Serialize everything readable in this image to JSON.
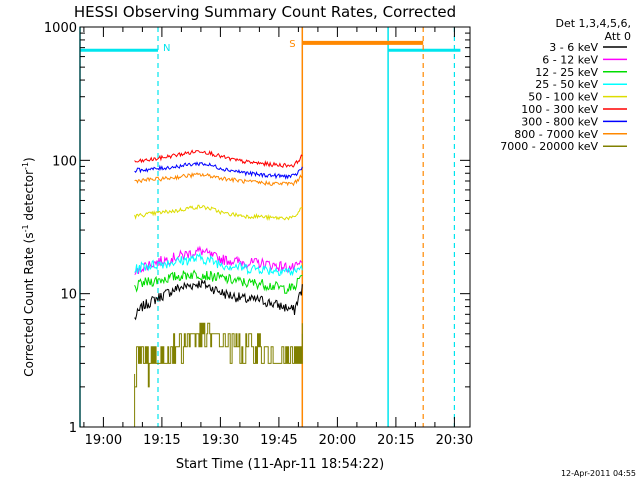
{
  "chart_data": {
    "type": "line",
    "title": "HESSI Observing Summary Count Rates, Corrected",
    "xlabel": "Start Time (11-Apr-11 18:54:22)",
    "ylabel": "Corrected Count Rate (s^-1 detector^-1)",
    "ylabel_parts": {
      "a": "Corrected Count Rate (s",
      "sup1": "-1",
      "b": " detector",
      "sup2": "-1",
      "c": ")"
    },
    "yscale": "log",
    "xlim": [
      "18:54",
      "20:34"
    ],
    "ylim": [
      1,
      1000
    ],
    "x_ticks": [
      "19:00",
      "19:15",
      "19:30",
      "19:45",
      "20:00",
      "20:15",
      "20:30"
    ],
    "y_ticks": [
      "1",
      "10",
      "100",
      "1000"
    ],
    "grid": false,
    "legend_position": "top-right",
    "legend_header": [
      "Det 1,3,4,5,6,",
      "Att 0"
    ],
    "series": [
      {
        "name": "3 - 6 keV",
        "color": "#000000",
        "x": [
          "19:08",
          "19:10",
          "19:13",
          "19:16",
          "19:19",
          "19:22",
          "19:25",
          "19:28",
          "19:31",
          "19:34",
          "19:37",
          "19:40",
          "19:43",
          "19:46",
          "19:49",
          "19:51"
        ],
        "y": [
          6.5,
          8,
          9,
          10,
          11,
          11.5,
          12,
          11,
          10,
          9.5,
          9,
          9,
          8.5,
          8,
          7.5,
          11
        ]
      },
      {
        "name": "6 - 12 keV",
        "color": "#ff00ff",
        "x": [
          "19:08",
          "19:10",
          "19:13",
          "19:16",
          "19:19",
          "19:22",
          "19:25",
          "19:28",
          "19:31",
          "19:34",
          "19:37",
          "19:40",
          "19:43",
          "19:46",
          "19:49",
          "19:51"
        ],
        "y": [
          14,
          16,
          17,
          18,
          19,
          20,
          21,
          19,
          18,
          17.5,
          17,
          17,
          16.5,
          16,
          15.5,
          17
        ]
      },
      {
        "name": "12 - 25 keV",
        "color": "#00dd00",
        "x": [
          "19:08",
          "19:10",
          "19:13",
          "19:16",
          "19:19",
          "19:22",
          "19:25",
          "19:28",
          "19:31",
          "19:34",
          "19:37",
          "19:40",
          "19:43",
          "19:46",
          "19:49",
          "19:51"
        ],
        "y": [
          11,
          12,
          12.5,
          13,
          13.5,
          14,
          14,
          13.5,
          13,
          12.5,
          12,
          12,
          11.5,
          11,
          11,
          14
        ]
      },
      {
        "name": "25 - 50 keV",
        "color": "#00ffff",
        "x": [
          "19:08",
          "19:10",
          "19:13",
          "19:16",
          "19:19",
          "19:22",
          "19:25",
          "19:28",
          "19:31",
          "19:34",
          "19:37",
          "19:40",
          "19:43",
          "19:46",
          "19:49",
          "19:51"
        ],
        "y": [
          15,
          16,
          16.5,
          17,
          17.5,
          18,
          18.5,
          17.5,
          16.5,
          16,
          15.5,
          15.5,
          15,
          15,
          14.5,
          16
        ]
      },
      {
        "name": "50 - 100 keV",
        "color": "#dddd00",
        "x": [
          "19:08",
          "19:10",
          "19:13",
          "19:16",
          "19:19",
          "19:22",
          "19:25",
          "19:28",
          "19:31",
          "19:34",
          "19:37",
          "19:40",
          "19:43",
          "19:46",
          "19:49",
          "19:51"
        ],
        "y": [
          38,
          39,
          40,
          41,
          42,
          44,
          45,
          43,
          40,
          39,
          38,
          38,
          37,
          37,
          37,
          45
        ]
      },
      {
        "name": "100 - 300 keV",
        "color": "#ff0000",
        "x": [
          "19:08",
          "19:10",
          "19:13",
          "19:16",
          "19:19",
          "19:22",
          "19:25",
          "19:28",
          "19:31",
          "19:34",
          "19:37",
          "19:40",
          "19:43",
          "19:46",
          "19:49",
          "19:51"
        ],
        "y": [
          97,
          99,
          102,
          106,
          110,
          114,
          118,
          112,
          105,
          100,
          97,
          95,
          93,
          92,
          92,
          108
        ]
      },
      {
        "name": "300 - 800 keV",
        "color": "#0000ff",
        "x": [
          "19:08",
          "19:10",
          "19:13",
          "19:16",
          "19:19",
          "19:22",
          "19:25",
          "19:28",
          "19:31",
          "19:34",
          "19:37",
          "19:40",
          "19:43",
          "19:46",
          "19:49",
          "19:51"
        ],
        "y": [
          84,
          85,
          86,
          88,
          90,
          93,
          95,
          91,
          86,
          83,
          80,
          78,
          77,
          76,
          76,
          88
        ]
      },
      {
        "name": "800 - 7000 keV",
        "color": "#ff8800",
        "x": [
          "19:08",
          "19:10",
          "19:13",
          "19:16",
          "19:19",
          "19:22",
          "19:25",
          "19:28",
          "19:31",
          "19:34",
          "19:37",
          "19:40",
          "19:43",
          "19:46",
          "19:49",
          "19:51"
        ],
        "y": [
          70,
          71,
          72,
          73,
          75,
          77,
          78,
          76,
          73,
          71,
          69,
          68,
          67,
          67,
          67,
          78
        ]
      },
      {
        "name": "7000 - 20000 keV",
        "color": "#808000",
        "x": [
          "19:08",
          "19:10",
          "19:13",
          "19:16",
          "19:19",
          "19:22",
          "19:25",
          "19:28",
          "19:31",
          "19:34",
          "19:37",
          "19:40",
          "19:43",
          "19:46",
          "19:49",
          "19:51"
        ],
        "y": [
          2.5,
          2.5,
          3,
          3,
          4,
          5,
          5.5,
          5,
          4.5,
          4,
          3.5,
          3.5,
          3,
          3,
          3,
          4
        ]
      }
    ],
    "annotations": [
      {
        "label": "N",
        "color": "#00e5ee"
      },
      {
        "label": "S",
        "color": "#ff8800"
      }
    ],
    "footer_date": "12-Apr-2011 04:55"
  }
}
